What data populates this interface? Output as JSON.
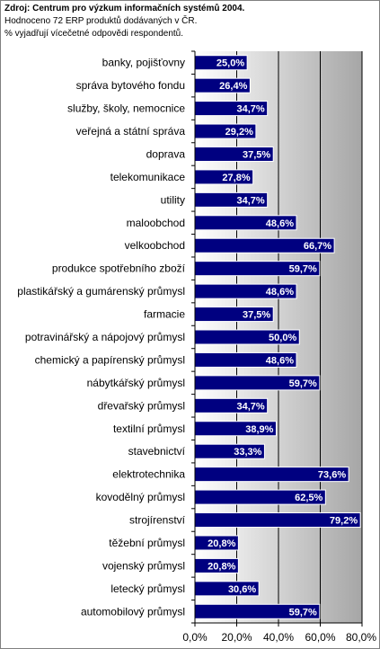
{
  "header": {
    "source_line": "Zdroj: Centrum pro výzkum informačních systémů 2004.",
    "note_line1": "Hodnoceno 72 ERP produktů dodávaných v ČR.",
    "note_line2": "% vyjadřují vícečetné odpovědi respondentů."
  },
  "chart_data": {
    "type": "bar",
    "orientation": "horizontal",
    "categories": [
      "banky, pojišťovny",
      "správa bytového fondu",
      "služby, školy, nemocnice",
      "veřejná a státní správa",
      "doprava",
      "telekomunikace",
      "utility",
      "maloobchod",
      "velkoobchod",
      "produkce spotřebního zboží",
      "plastikářský a gumárenský průmysl",
      "farmacie",
      "potravinářský a nápojový průmysl",
      "chemický a papírenský průmysl",
      "nábytkářský průmysl",
      "dřevařský průmysl",
      "textilní průmysl",
      "stavebnictví",
      "elektrotechnika",
      "kovodělný průmysl",
      "strojírenství",
      "těžební průmysl",
      "vojenský průmysl",
      "letecký průmysl",
      "automobilový průmysl"
    ],
    "values": [
      25.0,
      26.4,
      34.7,
      29.2,
      37.5,
      27.8,
      34.7,
      48.6,
      66.7,
      59.7,
      48.6,
      37.5,
      50.0,
      48.6,
      59.7,
      34.7,
      38.9,
      33.3,
      73.6,
      62.5,
      79.2,
      20.8,
      20.8,
      30.6,
      59.7
    ],
    "value_labels": [
      "25,0%",
      "26,4%",
      "34,7%",
      "29,2%",
      "37,5%",
      "27,8%",
      "34,7%",
      "48,6%",
      "66,7%",
      "59,7%",
      "48,6%",
      "37,5%",
      "50,0%",
      "48,6%",
      "59,7%",
      "34,7%",
      "38,9%",
      "33,3%",
      "73,6%",
      "62,5%",
      "79,2%",
      "20,8%",
      "20,8%",
      "30,6%",
      "59,7%"
    ],
    "xlim": [
      0,
      80
    ],
    "x_ticks": [
      0,
      20,
      40,
      60,
      80
    ],
    "x_tick_labels": [
      "0,0%",
      "20,0%",
      "40,0%",
      "60,0%",
      "80,0%"
    ],
    "grid": true,
    "colors": {
      "bar": "#000080",
      "bar_edge": "#ffffff",
      "grid": "#000000",
      "plot_bg_start": "#ffffff",
      "plot_bg_end": "#a6a6a6"
    }
  }
}
